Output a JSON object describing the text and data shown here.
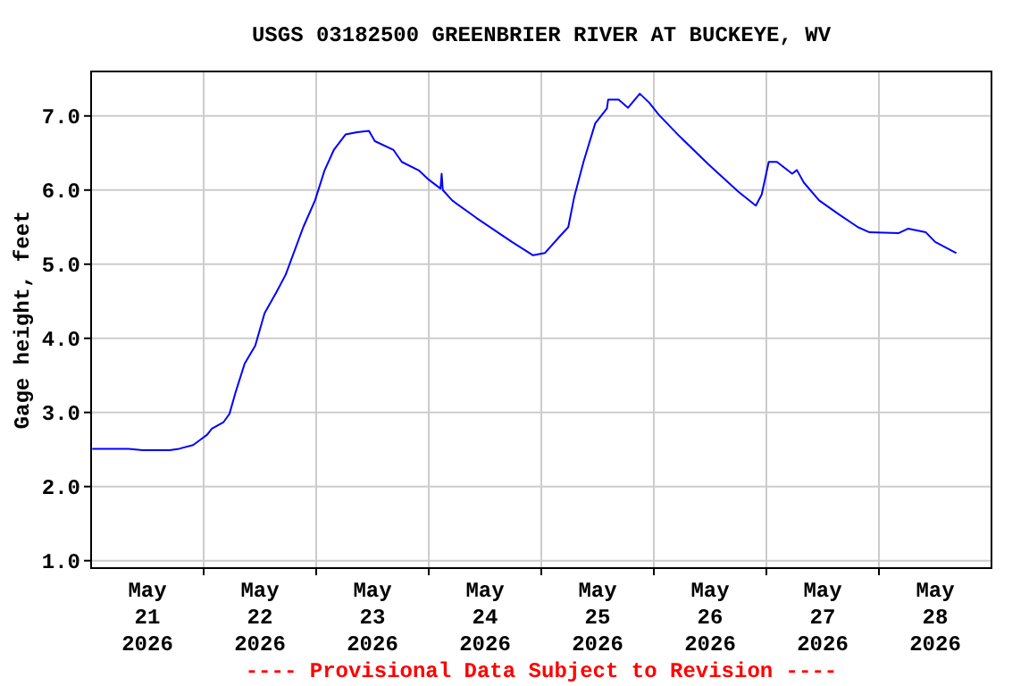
{
  "chart_data": {
    "type": "line",
    "title": "USGS 03182500 GREENBRIER RIVER AT BUCKEYE, WV",
    "ylabel": "Gage height, feet",
    "annotations": [
      "---- Provisional Data Subject to Revision ----"
    ],
    "x": [
      "2026-05-21T00:15",
      "2026-05-21T08:00",
      "2026-05-21T11:00",
      "2026-05-21T16:45",
      "2026-05-21T18:45",
      "2026-05-21T21:45",
      "2026-05-21T23:15",
      "2026-05-22T00:45",
      "2026-05-22T01:45",
      "2026-05-22T04:15",
      "2026-05-22T05:30",
      "2026-05-22T06:45",
      "2026-05-22T08:45",
      "2026-05-22T11:00",
      "2026-05-22T13:00",
      "2026-05-22T15:30",
      "2026-05-22T17:30",
      "2026-05-22T21:15",
      "2026-05-22T23:45",
      "2026-05-23T01:45",
      "2026-05-23T03:45",
      "2026-05-23T06:15",
      "2026-05-23T08:45",
      "2026-05-23T11:15",
      "2026-05-23T12:30",
      "2026-05-23T16:30",
      "2026-05-23T18:15",
      "2026-05-23T22:00",
      "2026-05-24T00:00",
      "2026-05-24T02:30",
      "2026-05-24T02:45",
      "2026-05-24T03:00",
      "2026-05-24T05:00",
      "2026-05-24T10:15",
      "2026-05-24T14:00",
      "2026-05-24T17:45",
      "2026-05-24T22:15",
      "2026-05-25T00:45",
      "2026-05-25T04:00",
      "2026-05-25T05:45",
      "2026-05-25T07:00",
      "2026-05-25T09:00",
      "2026-05-25T11:30",
      "2026-05-25T14:00",
      "2026-05-25T14:15",
      "2026-05-25T16:30",
      "2026-05-25T18:30",
      "2026-05-25T21:00",
      "2026-05-25T23:00",
      "2026-05-26T01:00",
      "2026-05-26T05:15",
      "2026-05-26T11:45",
      "2026-05-26T18:00",
      "2026-05-26T21:45",
      "2026-05-26T23:00",
      "2026-05-27T00:30",
      "2026-05-27T02:15",
      "2026-05-27T05:30",
      "2026-05-27T06:30",
      "2026-05-27T08:00",
      "2026-05-27T11:15",
      "2026-05-27T15:30",
      "2026-05-27T19:30",
      "2026-05-27T22:00",
      "2026-05-28T04:15",
      "2026-05-28T06:15",
      "2026-05-28T10:00",
      "2026-05-28T12:00",
      "2026-05-28T16:30"
    ],
    "series": [
      {
        "color": "#0000ff",
        "values": [
          2.51,
          2.51,
          2.49,
          2.49,
          2.51,
          2.56,
          2.63,
          2.7,
          2.78,
          2.87,
          2.98,
          3.26,
          3.66,
          3.9,
          4.34,
          4.62,
          4.86,
          5.5,
          5.86,
          6.26,
          6.54,
          6.75,
          6.78,
          6.8,
          6.66,
          6.54,
          6.38,
          6.26,
          6.14,
          6.02,
          6.22,
          6.0,
          5.86,
          5.62,
          5.46,
          5.3,
          5.12,
          5.15,
          5.38,
          5.5,
          5.9,
          6.38,
          6.9,
          7.1,
          7.22,
          7.22,
          7.11,
          7.3,
          7.18,
          7.02,
          6.74,
          6.34,
          5.98,
          5.79,
          5.94,
          6.38,
          6.38,
          6.22,
          6.27,
          6.1,
          5.86,
          5.67,
          5.5,
          5.43,
          5.42,
          5.48,
          5.43,
          5.3,
          5.15
        ]
      }
    ],
    "xlim": [
      "2026-05-21T00:00",
      "2026-05-29T00:00"
    ],
    "xticks": [
      {
        "value": "2026-05-21T12:00",
        "label": "May\n21\n2026"
      },
      {
        "value": "2026-05-22T00:00",
        "label": null
      },
      {
        "value": "2026-05-22T12:00",
        "label": "May\n22\n2026"
      },
      {
        "value": "2026-05-23T00:00",
        "label": null
      },
      {
        "value": "2026-05-23T12:00",
        "label": "May\n23\n2026"
      },
      {
        "value": "2026-05-24T00:00",
        "label": null
      },
      {
        "value": "2026-05-24T12:00",
        "label": "May\n24\n2026"
      },
      {
        "value": "2026-05-25T00:00",
        "label": null
      },
      {
        "value": "2026-05-25T12:00",
        "label": "May\n25\n2026"
      },
      {
        "value": "2026-05-26T00:00",
        "label": null
      },
      {
        "value": "2026-05-26T12:00",
        "label": "May\n26\n2026"
      },
      {
        "value": "2026-05-27T00:00",
        "label": null
      },
      {
        "value": "2026-05-27T12:00",
        "label": "May\n27\n2026"
      },
      {
        "value": "2026-05-28T00:00",
        "label": null
      },
      {
        "value": "2026-05-28T12:00",
        "label": "May\n28\n2026"
      }
    ],
    "ylim": [
      0.9,
      7.6
    ],
    "yticks": [
      {
        "value": 1,
        "label": "1.0"
      },
      {
        "value": 2,
        "label": "2.0"
      },
      {
        "value": 3,
        "label": "3.0"
      },
      {
        "value": 4,
        "label": "4.0"
      },
      {
        "value": 5,
        "label": "5.0"
      },
      {
        "value": 6,
        "label": "6.0"
      },
      {
        "value": 7,
        "label": "7.0"
      }
    ],
    "grid": true,
    "marker": "none",
    "line_style": "solid"
  }
}
